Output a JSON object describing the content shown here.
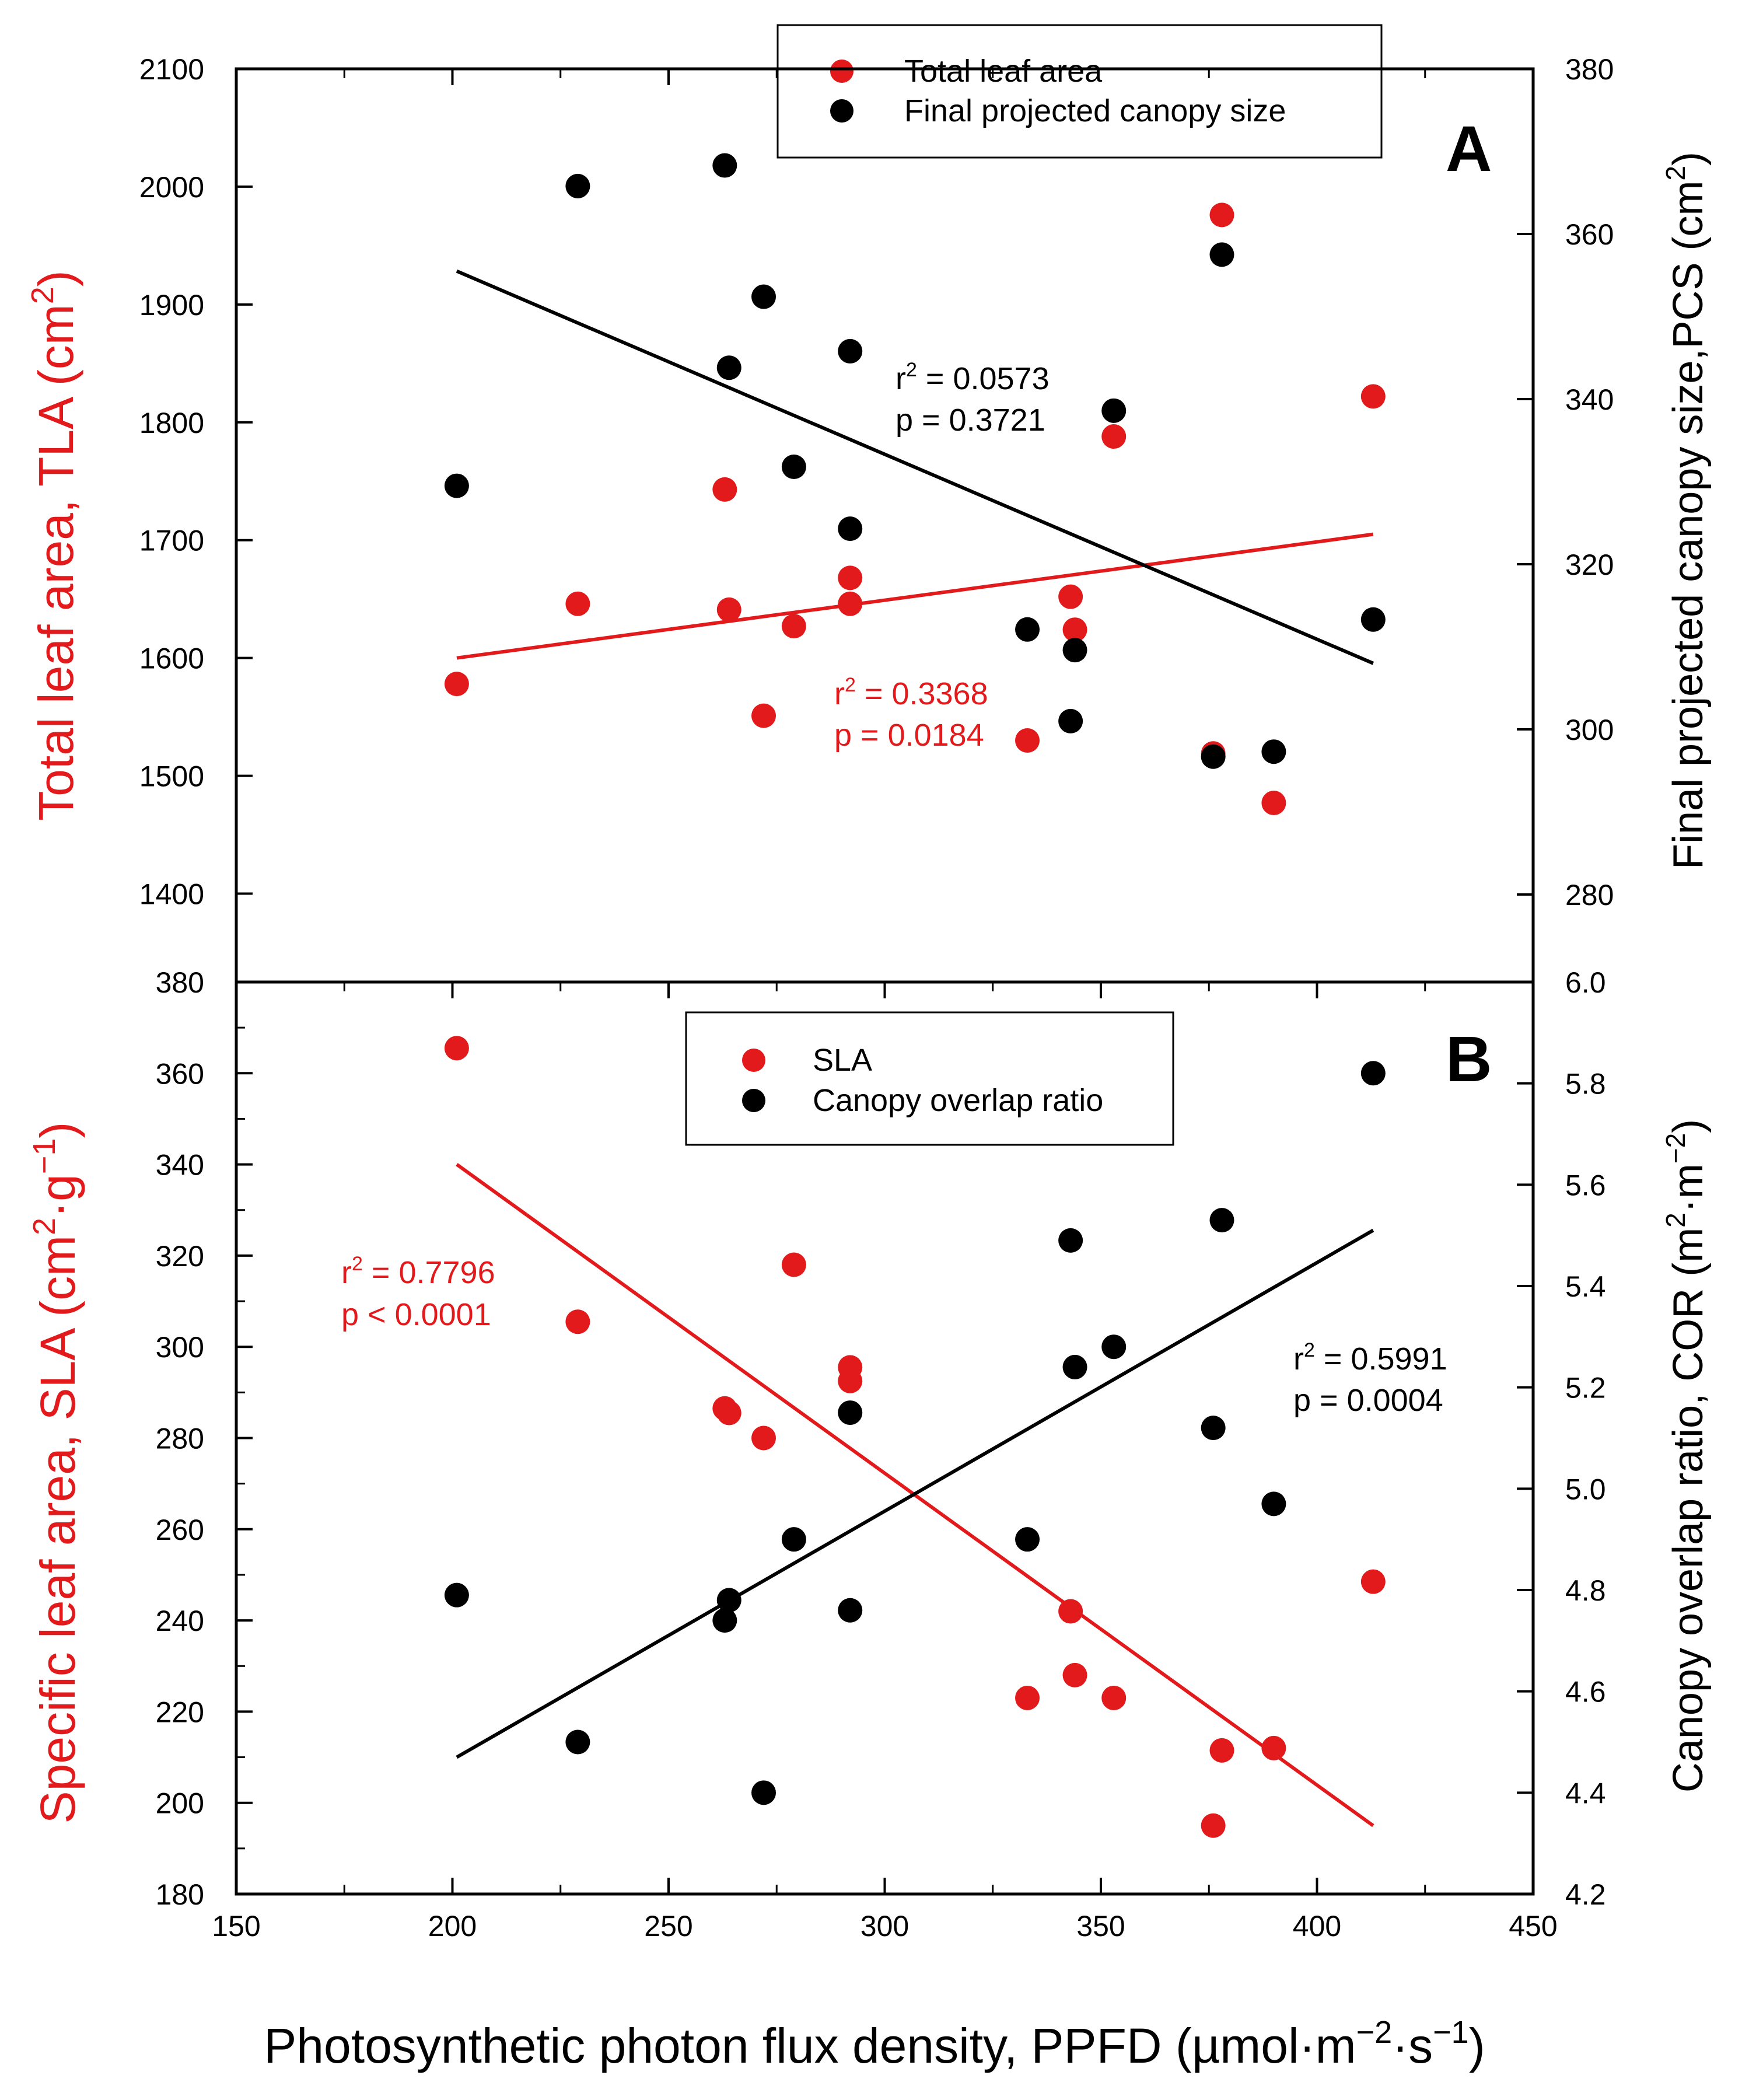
{
  "colors": {
    "red": "#e31a1c",
    "black": "#000000"
  },
  "x_axis": {
    "label": "Photosynthetic photon flux density, PPFD (µmol·m⁻²·s⁻¹)",
    "label_parts": {
      "prefix": "Photosynthetic photon flux density, PPFD (",
      "unit": "µmol·m",
      "exp1": "−2",
      "mid": "·s",
      "exp2": "−1",
      "suffix": ")"
    },
    "ticks": [
      150,
      200,
      250,
      300,
      350,
      400,
      450
    ],
    "range": [
      150,
      450
    ]
  },
  "chart_data": [
    {
      "type": "scatter",
      "panel": "A",
      "left_axis": {
        "label": "Total leaf area, TLA (cm²)",
        "label_main": "Total leaf area, TLA (cm",
        "label_sup": "2",
        "label_end": ")",
        "ticks": [
          1400,
          1500,
          1600,
          1700,
          1800,
          1900,
          2000,
          2100
        ],
        "range": [
          1325,
          2100
        ]
      },
      "right_axis": {
        "label": "Final projected canopy size,PCS (cm²)",
        "label_main": "Final projected canopy size,PCS (cm",
        "label_sup": "2",
        "label_end": ")",
        "ticks": [
          280,
          300,
          320,
          340,
          360,
          380
        ],
        "range": [
          269.4,
          380
        ]
      },
      "legend": {
        "position": "top-right",
        "entries": [
          "Total leaf area",
          "Final projected canopy size"
        ]
      },
      "series": [
        {
          "name": "Total leaf area",
          "axis": "left",
          "color": "red",
          "points": [
            [
              201,
              1578
            ],
            [
              229,
              1646
            ],
            [
              263,
              1743
            ],
            [
              264,
              1641
            ],
            [
              272,
              1551
            ],
            [
              279,
              1627
            ],
            [
              292,
              1668
            ],
            [
              292,
              1646
            ],
            [
              333,
              1530
            ],
            [
              343,
              1652
            ],
            [
              344,
              1624
            ],
            [
              353,
              1788
            ],
            [
              376,
              1519
            ],
            [
              378,
              1976
            ],
            [
              390,
              1477
            ],
            [
              413,
              1822
            ]
          ],
          "fit": {
            "x": [
              201,
              413
            ],
            "y": [
              1600,
              1705
            ]
          },
          "annotation": {
            "r2_prefix": "r",
            "r2_sup": "2",
            "r2_value": " = 0.3368",
            "p": "p = 0.0184"
          }
        },
        {
          "name": "Final projected canopy size",
          "axis": "right",
          "color": "black",
          "points": [
            [
              201,
              329.5
            ],
            [
              229,
              365.8
            ],
            [
              263,
              368.3
            ],
            [
              264,
              343.8
            ],
            [
              272,
              352.4
            ],
            [
              279,
              331.8
            ],
            [
              292,
              345.8
            ],
            [
              292,
              324.3
            ],
            [
              333,
              312.1
            ],
            [
              343,
              301.0
            ],
            [
              344,
              309.6
            ],
            [
              353,
              338.6
            ],
            [
              376,
              296.7
            ],
            [
              378,
              357.5
            ],
            [
              390,
              297.3
            ],
            [
              413,
              313.3
            ]
          ],
          "fit": {
            "x": [
              201,
              413
            ],
            "y": [
              355.5,
              308.0
            ]
          },
          "annotation": {
            "r2_prefix": "r",
            "r2_sup": "2",
            "r2_value": " = 0.0573",
            "p": "p = 0.3721"
          }
        }
      ]
    },
    {
      "type": "scatter",
      "panel": "B",
      "left_axis": {
        "label": "Specific leaf area, SLA (cm²·g⁻¹)",
        "label_main": "Specific leaf area, SLA (cm",
        "label_sup": "2",
        "label_mid": "·g",
        "label_sup2": "−1",
        "label_end": ")",
        "ticks": [
          180,
          200,
          220,
          240,
          260,
          280,
          300,
          320,
          340,
          360,
          380
        ],
        "range": [
          180,
          380
        ]
      },
      "right_axis": {
        "label": "Canopy overlap ratio, COR (m²·m⁻²)",
        "label_main": "Canopy overlap ratio, COR (m",
        "label_sup": "2",
        "label_mid": "·m",
        "label_sup2": "−2",
        "label_end": ")",
        "ticks": [
          4.2,
          4.4,
          4.6,
          4.8,
          5.0,
          5.2,
          5.4,
          5.6,
          5.8,
          6.0
        ],
        "tick_labels": [
          "4.2",
          "4.4",
          "4.6",
          "4.8",
          "5.0",
          "5.2",
          "5.4",
          "5.6",
          "5.8",
          "6.0"
        ],
        "range": [
          4.2,
          6.0
        ]
      },
      "legend": {
        "position": "top-center",
        "entries": [
          "SLA",
          "Canopy overlap ratio"
        ]
      },
      "series": [
        {
          "name": "SLA",
          "axis": "left",
          "color": "red",
          "points": [
            [
              201,
              365.5
            ],
            [
              229,
              305.5
            ],
            [
              263,
              286.5
            ],
            [
              264,
              285.5
            ],
            [
              272,
              280
            ],
            [
              279,
              318
            ],
            [
              292,
              295.5
            ],
            [
              292,
              292.5
            ],
            [
              333,
              223
            ],
            [
              343,
              242
            ],
            [
              344,
              228
            ],
            [
              353,
              223
            ],
            [
              376,
              195
            ],
            [
              378,
              211.5
            ],
            [
              390,
              212
            ],
            [
              413,
              248.5
            ]
          ],
          "fit": {
            "x": [
              201,
              413
            ],
            "y": [
              340,
              195
            ]
          },
          "annotation": {
            "r2_prefix": "r",
            "r2_sup": "2",
            "r2_value": " = 0.7796",
            "p": "p < 0.0001"
          }
        },
        {
          "name": "Canopy overlap ratio",
          "axis": "right",
          "color": "black",
          "points": [
            [
              201,
              4.79
            ],
            [
              229,
              4.5
            ],
            [
              263,
              4.74
            ],
            [
              264,
              4.78
            ],
            [
              272,
              4.4
            ],
            [
              279,
              4.9
            ],
            [
              292,
              5.15
            ],
            [
              292,
              4.76
            ],
            [
              333,
              4.9
            ],
            [
              343,
              5.49
            ],
            [
              344,
              5.24
            ],
            [
              353,
              5.28
            ],
            [
              376,
              5.12
            ],
            [
              378,
              5.53
            ],
            [
              390,
              4.97
            ],
            [
              413,
              5.82
            ]
          ],
          "fit": {
            "x": [
              201,
              413
            ],
            "y": [
              4.47,
              5.51
            ]
          },
          "annotation": {
            "r2_prefix": "r",
            "r2_sup": "2",
            "r2_value": " = 0.5991",
            "p": "p = 0.0004"
          }
        }
      ]
    }
  ],
  "panel_labels": [
    "A",
    "B"
  ]
}
